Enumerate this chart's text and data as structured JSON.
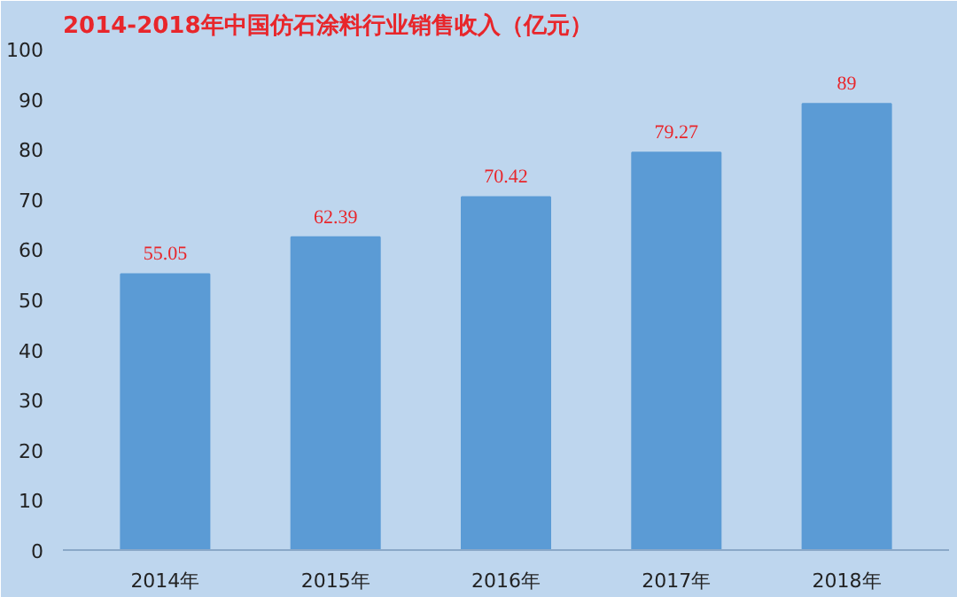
{
  "chart_data": {
    "type": "bar",
    "title": "2014-2018年中国仿石涂料行业销售收入（亿元）",
    "categories": [
      "2014年",
      "2015年",
      "2016年",
      "2017年",
      "2018年"
    ],
    "values": [
      55.05,
      62.39,
      70.42,
      79.27,
      89
    ],
    "color": "#5b9bd5",
    "ylim": [
      0,
      100
    ],
    "yticks": [
      0,
      10,
      20,
      30,
      40,
      50,
      60,
      70,
      80,
      90,
      100
    ],
    "grid": false,
    "data_labels": true
  }
}
